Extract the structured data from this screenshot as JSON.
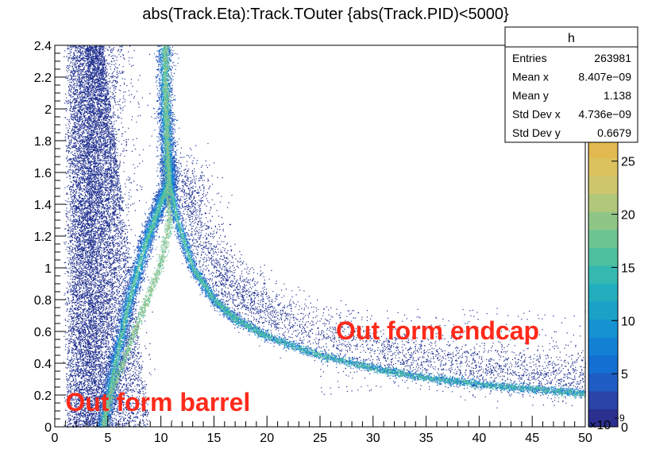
{
  "chart_data": {
    "type": "heatmap",
    "title": "abs(Track.Eta):Track.TOuter {abs(Track.PID)<5000}",
    "xlabel": "",
    "ylabel": "",
    "x_exponent_label": "×10",
    "x_exponent_power": "−9",
    "xlim": [
      0,
      50
    ],
    "ylim": [
      0,
      2.4
    ],
    "x_ticks": [
      0,
      5,
      10,
      15,
      20,
      25,
      30,
      35,
      40,
      45,
      50
    ],
    "y_ticks": [
      0,
      0.2,
      0.4,
      0.6,
      0.8,
      1,
      1.2,
      1.4,
      1.6,
      1.8,
      2,
      2.2,
      2.4
    ],
    "colorbar": {
      "range": [
        0,
        27
      ],
      "ticks": [
        0,
        5,
        10,
        15,
        20,
        25
      ]
    },
    "stats_box": {
      "name": "h",
      "rows": [
        {
          "label": "Entries",
          "value": "263981"
        },
        {
          "label": "Mean x",
          "value": "8.407e−09"
        },
        {
          "label": "Mean y",
          "value": "1.138"
        },
        {
          "label": "Std Dev x",
          "value": "4.736e−09"
        },
        {
          "label": "Std Dev y",
          "value": "0.6679"
        }
      ]
    },
    "annotations": [
      {
        "text": "Out form barrel",
        "x": 1,
        "y": 0.1
      },
      {
        "text": "Out form endcap",
        "x": 26.5,
        "y": 0.55
      }
    ],
    "bands": [
      {
        "name": "barrel",
        "points": [
          [
            4.5,
            0
          ],
          [
            5.5,
            0.35
          ],
          [
            7,
            0.8
          ],
          [
            8.5,
            1.15
          ],
          [
            10,
            1.42
          ],
          [
            10.8,
            1.55
          ],
          [
            10.6,
            1.7
          ],
          [
            10.4,
            2.0
          ],
          [
            10.3,
            2.4
          ]
        ]
      },
      {
        "name": "endcap",
        "points": [
          [
            10.8,
            1.55
          ],
          [
            11.5,
            1.3
          ],
          [
            13,
            1.0
          ],
          [
            15,
            0.8
          ],
          [
            17,
            0.68
          ],
          [
            20,
            0.57
          ],
          [
            25,
            0.45
          ],
          [
            30,
            0.37
          ],
          [
            35,
            0.31
          ],
          [
            40,
            0.27
          ],
          [
            45,
            0.24
          ],
          [
            50,
            0.21
          ]
        ]
      }
    ]
  }
}
